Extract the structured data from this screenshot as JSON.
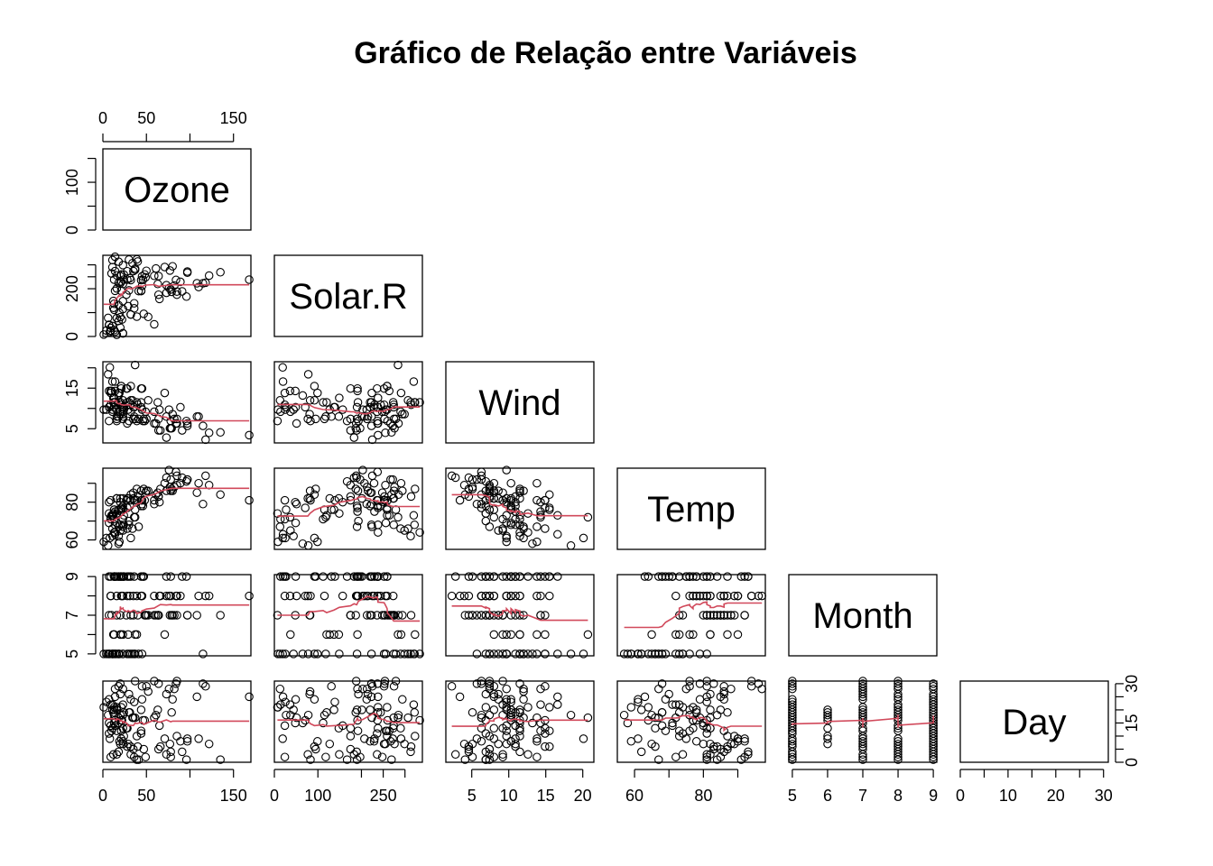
{
  "chart_data": {
    "type": "scatter",
    "layout": "pairs-lower-triangle",
    "title": "Gráfico de Relação entre Variáveis",
    "variables": [
      {
        "name": "Ozone",
        "range": [
          0,
          170
        ],
        "ticks": [
          0,
          50,
          100,
          150
        ],
        "tick_labels": [
          "0",
          "50",
          "",
          "150"
        ],
        "left_tick_labels": [
          "0",
          "",
          "100",
          ""
        ]
      },
      {
        "name": "Solar.R",
        "range": [
          0,
          340
        ],
        "ticks": [
          0,
          100,
          200,
          250,
          300
        ],
        "tick_labels": [
          "0",
          "100",
          "",
          "250",
          ""
        ],
        "left_tick_labels": [
          "0",
          "",
          "200",
          "",
          ""
        ]
      },
      {
        "name": "Wind",
        "range": [
          1.5,
          21.5
        ],
        "ticks": [
          5,
          10,
          15,
          20
        ],
        "tick_labels": [
          "5",
          "10",
          "15",
          "20"
        ],
        "left_tick_labels": [
          "5",
          "",
          "15",
          ""
        ]
      },
      {
        "name": "Temp",
        "range": [
          55,
          98
        ],
        "ticks": [
          60,
          70,
          80,
          90
        ],
        "tick_labels": [
          "60",
          "",
          "80",
          ""
        ],
        "left_tick_labels": [
          "60",
          "",
          "80",
          ""
        ]
      },
      {
        "name": "Month",
        "range": [
          4.9,
          9.1
        ],
        "ticks": [
          5,
          6,
          7,
          8,
          9
        ],
        "tick_labels": [
          "5",
          "6",
          "7",
          "8",
          "9"
        ],
        "left_tick_labels": [
          "5",
          "",
          "7",
          "",
          "9"
        ]
      },
      {
        "name": "Day",
        "range": [
          0,
          31
        ],
        "ticks": [
          0,
          5,
          10,
          15,
          20,
          25,
          30
        ],
        "tick_labels": [
          "0",
          "",
          "10",
          "",
          "20",
          "",
          "30"
        ],
        "right_tick_labels": [
          "0",
          "",
          "",
          "15",
          "",
          "",
          "30"
        ]
      }
    ],
    "records": [
      [
        41,
        190,
        7.4,
        67,
        5,
        1
      ],
      [
        36,
        118,
        8.0,
        72,
        5,
        2
      ],
      [
        12,
        149,
        12.6,
        74,
        5,
        3
      ],
      [
        18,
        313,
        11.5,
        62,
        5,
        4
      ],
      [
        28,
        null,
        14.9,
        66,
        5,
        6
      ],
      [
        23,
        299,
        8.6,
        65,
        5,
        7
      ],
      [
        19,
        99,
        13.8,
        59,
        5,
        8
      ],
      [
        8,
        19,
        20.1,
        61,
        5,
        9
      ],
      [
        7,
        null,
        6.9,
        74,
        5,
        11
      ],
      [
        16,
        256,
        9.7,
        69,
        5,
        12
      ],
      [
        11,
        290,
        9.2,
        66,
        5,
        13
      ],
      [
        14,
        274,
        10.9,
        68,
        5,
        14
      ],
      [
        18,
        65,
        13.2,
        58,
        5,
        15
      ],
      [
        14,
        334,
        11.5,
        64,
        5,
        16
      ],
      [
        34,
        307,
        12.0,
        66,
        5,
        17
      ],
      [
        6,
        78,
        18.4,
        57,
        5,
        18
      ],
      [
        30,
        322,
        11.5,
        68,
        5,
        19
      ],
      [
        11,
        44,
        9.7,
        62,
        5,
        20
      ],
      [
        1,
        8,
        9.7,
        59,
        5,
        21
      ],
      [
        11,
        320,
        16.6,
        73,
        5,
        22
      ],
      [
        4,
        25,
        9.7,
        61,
        5,
        23
      ],
      [
        32,
        92,
        12.0,
        61,
        5,
        24
      ],
      [
        23,
        13,
        12.0,
        67,
        5,
        28
      ],
      [
        45,
        252,
        14.9,
        81,
        5,
        29
      ],
      [
        115,
        223,
        5.7,
        79,
        5,
        30
      ],
      [
        37,
        279,
        7.4,
        76,
        5,
        31
      ],
      [
        29,
        127,
        9.7,
        82,
        6,
        7
      ],
      [
        71,
        291,
        13.8,
        90,
        6,
        9
      ],
      [
        39,
        323,
        11.5,
        87,
        6,
        10
      ],
      [
        23,
        148,
        8.0,
        82,
        6,
        13
      ],
      [
        21,
        191,
        14.9,
        77,
        6,
        16
      ],
      [
        37,
        284,
        20.7,
        72,
        6,
        17
      ],
      [
        20,
        37,
        9.2,
        65,
        6,
        18
      ],
      [
        12,
        120,
        11.5,
        73,
        6,
        19
      ],
      [
        13,
        137,
        10.3,
        76,
        6,
        20
      ],
      [
        135,
        269,
        4.1,
        84,
        7,
        1
      ],
      [
        49,
        248,
        9.2,
        85,
        7,
        2
      ],
      [
        32,
        236,
        9.2,
        81,
        7,
        3
      ],
      [
        64,
        175,
        4.6,
        83,
        7,
        5
      ],
      [
        40,
        314,
        10.9,
        83,
        7,
        6
      ],
      [
        77,
        276,
        5.1,
        88,
        7,
        7
      ],
      [
        97,
        267,
        6.3,
        92,
        7,
        8
      ],
      [
        97,
        272,
        5.7,
        92,
        7,
        9
      ],
      [
        85,
        175,
        7.4,
        89,
        7,
        10
      ],
      [
        10,
        264,
        14.3,
        73,
        7,
        12
      ],
      [
        27,
        175,
        14.9,
        81,
        7,
        13
      ],
      [
        7,
        48,
        14.3,
        80,
        7,
        15
      ],
      [
        48,
        260,
        6.9,
        81,
        7,
        16
      ],
      [
        35,
        274,
        10.3,
        82,
        7,
        17
      ],
      [
        61,
        285,
        6.3,
        84,
        7,
        18
      ],
      [
        79,
        187,
        5.1,
        87,
        7,
        19
      ],
      [
        63,
        220,
        11.5,
        85,
        7,
        20
      ],
      [
        16,
        7,
        6.9,
        74,
        7,
        21
      ],
      [
        80,
        294,
        8.6,
        86,
        7,
        24
      ],
      [
        108,
        223,
        8.0,
        85,
        7,
        25
      ],
      [
        20,
        81,
        8.6,
        82,
        7,
        26
      ],
      [
        52,
        82,
        12.0,
        86,
        7,
        27
      ],
      [
        82,
        213,
        7.4,
        88,
        7,
        28
      ],
      [
        50,
        275,
        7.4,
        86,
        7,
        29
      ],
      [
        64,
        253,
        7.4,
        83,
        7,
        30
      ],
      [
        59,
        254,
        9.2,
        81,
        7,
        31
      ],
      [
        39,
        83,
        6.9,
        81,
        8,
        1
      ],
      [
        9,
        24,
        13.8,
        81,
        8,
        2
      ],
      [
        16,
        77,
        7.4,
        82,
        8,
        3
      ],
      [
        78,
        null,
        6.9,
        86,
        8,
        4
      ],
      [
        35,
        null,
        7.4,
        85,
        8,
        5
      ],
      [
        66,
        null,
        4.6,
        87,
        8,
        6
      ],
      [
        122,
        255,
        4.0,
        89,
        8,
        7
      ],
      [
        89,
        229,
        10.3,
        90,
        8,
        8
      ],
      [
        110,
        207,
        8.0,
        90,
        8,
        9
      ],
      [
        44,
        192,
        11.5,
        86,
        8,
        12
      ],
      [
        28,
        273,
        11.5,
        82,
        8,
        13
      ],
      [
        65,
        157,
        9.7,
        80,
        8,
        14
      ],
      [
        22,
        71,
        10.3,
        77,
        8,
        16
      ],
      [
        59,
        51,
        6.3,
        79,
        8,
        17
      ],
      [
        23,
        115,
        7.4,
        76,
        8,
        18
      ],
      [
        31,
        244,
        10.9,
        78,
        8,
        19
      ],
      [
        44,
        190,
        10.3,
        78,
        8,
        20
      ],
      [
        21,
        259,
        15.5,
        77,
        8,
        21
      ],
      [
        9,
        36,
        14.3,
        72,
        8,
        22
      ],
      [
        45,
        212,
        9.7,
        79,
        8,
        24
      ],
      [
        168,
        238,
        3.4,
        81,
        8,
        25
      ],
      [
        73,
        215,
        8.0,
        86,
        8,
        26
      ],
      [
        76,
        203,
        9.7,
        97,
        8,
        28
      ],
      [
        118,
        225,
        2.3,
        94,
        8,
        29
      ],
      [
        84,
        237,
        6.3,
        96,
        8,
        30
      ],
      [
        85,
        188,
        6.3,
        94,
        8,
        31
      ],
      [
        96,
        167,
        6.9,
        91,
        9,
        1
      ],
      [
        78,
        197,
        5.1,
        92,
        9,
        2
      ],
      [
        73,
        183,
        2.8,
        93,
        9,
        3
      ],
      [
        91,
        189,
        4.6,
        93,
        9,
        4
      ],
      [
        47,
        95,
        7.4,
        87,
        9,
        5
      ],
      [
        32,
        92,
        15.5,
        84,
        9,
        6
      ],
      [
        20,
        252,
        10.9,
        80,
        9,
        7
      ],
      [
        23,
        220,
        10.3,
        78,
        9,
        8
      ],
      [
        21,
        230,
        10.9,
        75,
        9,
        9
      ],
      [
        24,
        259,
        9.7,
        73,
        9,
        10
      ],
      [
        44,
        236,
        14.9,
        81,
        9,
        11
      ],
      [
        21,
        259,
        15.5,
        76,
        9,
        12
      ],
      [
        28,
        238,
        6.3,
        77,
        9,
        13
      ],
      [
        9,
        24,
        10.9,
        71,
        9,
        14
      ],
      [
        13,
        112,
        11.5,
        71,
        9,
        15
      ],
      [
        46,
        237,
        6.9,
        78,
        9,
        16
      ],
      [
        18,
        224,
        13.8,
        67,
        9,
        17
      ],
      [
        13,
        27,
        10.3,
        76,
        9,
        18
      ],
      [
        24,
        238,
        10.3,
        68,
        9,
        19
      ],
      [
        16,
        201,
        8.0,
        82,
        9,
        20
      ],
      [
        13,
        238,
        12.6,
        64,
        9,
        21
      ],
      [
        23,
        14,
        9.2,
        71,
        9,
        22
      ],
      [
        36,
        139,
        10.3,
        81,
        9,
        23
      ],
      [
        7,
        49,
        10.3,
        69,
        9,
        24
      ],
      [
        14,
        20,
        16.6,
        63,
        9,
        25
      ],
      [
        30,
        193,
        6.9,
        70,
        9,
        26
      ],
      [
        14,
        191,
        14.3,
        75,
        9,
        28
      ],
      [
        18,
        131,
        8.0,
        76,
        9,
        29
      ],
      [
        20,
        223,
        11.5,
        68,
        9,
        30
      ]
    ]
  }
}
